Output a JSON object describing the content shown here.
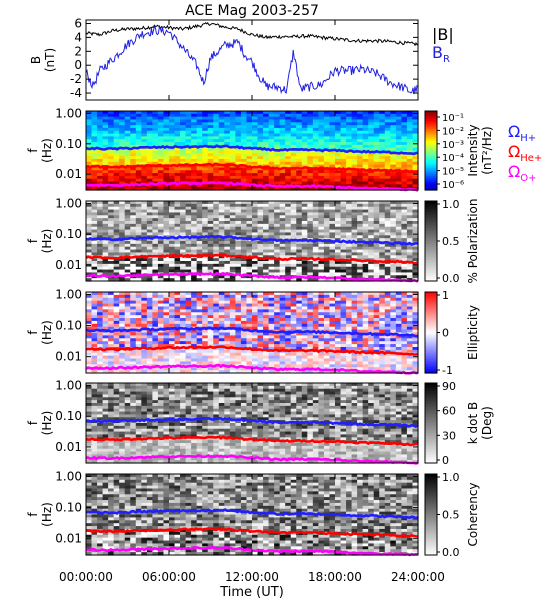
{
  "chart_data": {
    "title": "ACE Mag 2003-257",
    "xlabel": "Time (UT)",
    "x_ticks": [
      "00:00:00",
      "06:00:00",
      "12:00:00",
      "18:00:00",
      "24:00:00"
    ],
    "xlim_hours": [
      0,
      24
    ],
    "panels": [
      {
        "type": "line",
        "ylabel": "B",
        "yunit": "(nT)",
        "ylim": [
          -5,
          6.5
        ],
        "y_ticks": [
          "6",
          "4",
          "2",
          "0",
          "-2",
          "-4"
        ],
        "series": [
          {
            "name": "|B|",
            "color": "#000000",
            "x": [
              0,
              1,
              2,
              3,
              4,
              5,
              6,
              7,
              8,
              9,
              10,
              11,
              12,
              13,
              14,
              15,
              16,
              17,
              18,
              19,
              20,
              21,
              22,
              23,
              24
            ],
            "y": [
              4.6,
              4.4,
              5.0,
              5.2,
              5.3,
              5.6,
              5.4,
              5.2,
              5.6,
              6.0,
              5.5,
              5.2,
              4.4,
              4.0,
              4.1,
              4.1,
              4.2,
              4.0,
              3.8,
              3.6,
              3.5,
              3.5,
              3.4,
              3.2,
              3.0
            ]
          },
          {
            "name": "B",
            "subscript": "R",
            "color": "#2020e0",
            "x": [
              0,
              0.5,
              1,
              2,
              3,
              4,
              5,
              6,
              7,
              8,
              8.5,
              9,
              10,
              11,
              11.5,
              12,
              12.5,
              13,
              14,
              14.5,
              15,
              15.5,
              16,
              17,
              18,
              19,
              20,
              21,
              22,
              23,
              23.5,
              24
            ],
            "y": [
              -1,
              -3,
              -0.8,
              1,
              3,
              4.5,
              5,
              4.8,
              2.5,
              0,
              -2.5,
              1,
              2.8,
              3.3,
              1.5,
              0.5,
              -1.5,
              -3,
              -3.2,
              -3.6,
              2,
              -3.5,
              -3.2,
              -2.8,
              -0.8,
              -0.8,
              -0.6,
              -1.2,
              -2.5,
              -3.3,
              -3.8,
              -3.4
            ]
          }
        ]
      },
      {
        "type": "heatmap",
        "quantity": "Intensity",
        "ylabel": "f",
        "yunit": "(Hz)",
        "y_ticks": [
          "1.00",
          "0.10",
          "0.01"
        ],
        "yscale": "log",
        "ylim": [
          0.003,
          1.2
        ],
        "colorbar": {
          "label": "Intensity",
          "unit": "(nT²/Hz)",
          "ticks": [
            "10⁻¹",
            "10⁻²",
            "10⁻³",
            "10⁻⁴",
            "10⁻⁵",
            "10⁻⁶"
          ]
        },
        "lines": [
          {
            "name": "Ω",
            "subscript": "H+",
            "color": "#1f1fff"
          },
          {
            "name": "Ω",
            "subscript": "He+",
            "color": "#ff0000"
          },
          {
            "name": "Ω",
            "subscript": "O+",
            "color": "#ff00ff"
          }
        ]
      },
      {
        "type": "heatmap",
        "quantity": "% Polarization",
        "ylabel": "f",
        "yunit": "(Hz)",
        "y_ticks": [
          "1.00",
          "0.10",
          "0.01"
        ],
        "yscale": "log",
        "colorbar": {
          "label": "% Polarization",
          "ticks": [
            "1.0",
            "0.5",
            "0.0"
          ]
        }
      },
      {
        "type": "heatmap",
        "quantity": "Ellipticity",
        "ylabel": "f",
        "yunit": "(Hz)",
        "y_ticks": [
          "1.00",
          "0.10",
          "0.01"
        ],
        "yscale": "log",
        "colorbar": {
          "label": "Ellipticity",
          "ticks": [
            "1",
            "0",
            "-1"
          ]
        }
      },
      {
        "type": "heatmap",
        "quantity": "k dot B",
        "ylabel": "f",
        "yunit": "(Hz)",
        "y_ticks": [
          "1.00",
          "0.10",
          "0.01"
        ],
        "yscale": "log",
        "colorbar": {
          "label": "k dot B",
          "unit": "(Deg)",
          "ticks": [
            "90",
            "60",
            "30",
            "0"
          ]
        }
      },
      {
        "type": "heatmap",
        "quantity": "Coherency",
        "ylabel": "f",
        "yunit": "(Hz)",
        "y_ticks": [
          "1.00",
          "0.10",
          "0.01"
        ],
        "yscale": "log",
        "colorbar": {
          "label": "Coherency",
          "ticks": [
            "1.0",
            "0.5",
            "0.0"
          ]
        }
      }
    ],
    "gyrofrequency_lines_hz": {
      "H+": {
        "x": [
          0,
          2,
          4,
          6,
          8,
          10,
          12,
          14,
          16,
          18,
          20,
          22,
          24
        ],
        "f": [
          0.07,
          0.068,
          0.074,
          0.078,
          0.08,
          0.082,
          0.07,
          0.062,
          0.063,
          0.06,
          0.055,
          0.052,
          0.048
        ]
      },
      "He+": {
        "x": [
          0,
          2,
          4,
          6,
          8,
          10,
          12,
          14,
          16,
          18,
          20,
          22,
          24
        ],
        "f": [
          0.018,
          0.017,
          0.0185,
          0.0195,
          0.02,
          0.0205,
          0.0175,
          0.0155,
          0.0158,
          0.015,
          0.0138,
          0.013,
          0.012
        ]
      },
      "O+": {
        "x": [
          0,
          2,
          4,
          6,
          8,
          10,
          12,
          14,
          16,
          18,
          20,
          22,
          24
        ],
        "f": [
          0.0044,
          0.0043,
          0.0046,
          0.0049,
          0.005,
          0.0051,
          0.0044,
          0.0039,
          0.004,
          0.0038,
          0.0034,
          0.0033,
          0.003
        ]
      }
    }
  }
}
